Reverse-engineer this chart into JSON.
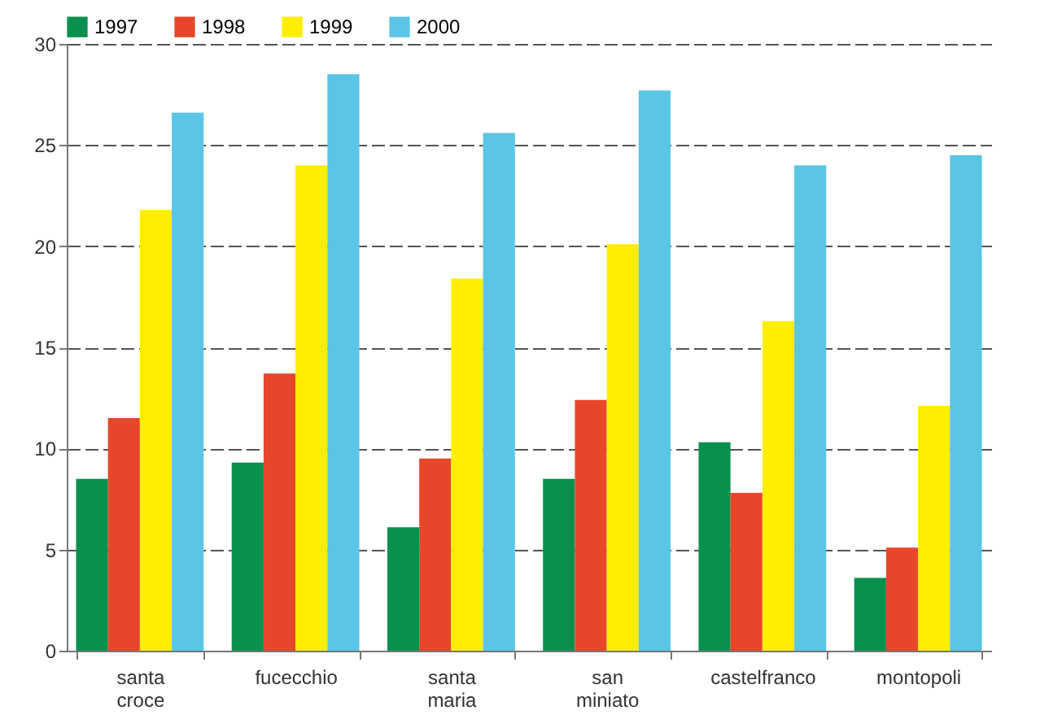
{
  "chart_data": {
    "type": "bar",
    "categories": [
      "santa croce",
      "fucecchio",
      "santa maria",
      "san miniato",
      "castelfranco",
      "montopoli"
    ],
    "series": [
      {
        "name": "1997",
        "color": "#0a8f4f",
        "values": [
          8.5,
          9.3,
          6.1,
          8.5,
          10.3,
          3.6
        ]
      },
      {
        "name": "1998",
        "color": "#e8462a",
        "values": [
          11.5,
          13.7,
          9.5,
          12.4,
          7.8,
          5.1
        ]
      },
      {
        "name": "1999",
        "color": "#ffee00",
        "values": [
          21.8,
          24.0,
          18.4,
          20.1,
          16.3,
          12.1
        ]
      },
      {
        "name": "2000",
        "color": "#5bc5e6",
        "values": [
          26.6,
          28.5,
          25.6,
          27.7,
          24.0,
          24.5
        ]
      }
    ],
    "ylim": [
      0,
      30
    ],
    "yticks": [
      0,
      5,
      10,
      15,
      20,
      25,
      30
    ],
    "grid": "y",
    "legend": "top left"
  }
}
